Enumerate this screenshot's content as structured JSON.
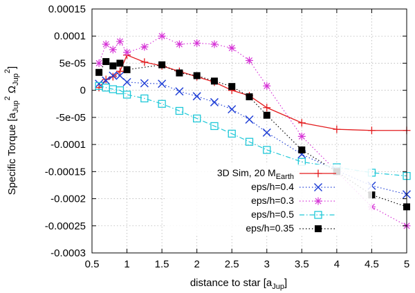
{
  "chart_data": {
    "type": "line",
    "xlabel": "distance to star [a",
    "xlabel_sub": "Jup",
    "xlabel_end": "]",
    "ylabel": "Specific Torque [a",
    "ylabel_sub1": "Jup",
    "ylabel_sup1": "2",
    "ylabel_mid": " Ω",
    "ylabel_sub2": "Jup",
    "ylabel_sup2": "2",
    "ylabel_end": "]",
    "xlim": [
      0.5,
      5
    ],
    "ylim": [
      -0.0003,
      0.00015
    ],
    "xticks": [
      {
        "value": 0.5,
        "label": "0.5"
      },
      {
        "value": 1,
        "label": "1"
      },
      {
        "value": 1.5,
        "label": "1.5"
      },
      {
        "value": 2,
        "label": "2"
      },
      {
        "value": 2.5,
        "label": "2.5"
      },
      {
        "value": 3,
        "label": "3"
      },
      {
        "value": 3.5,
        "label": "3.5"
      },
      {
        "value": 4,
        "label": "4"
      },
      {
        "value": 4.5,
        "label": "4.5"
      },
      {
        "value": 5,
        "label": "5"
      }
    ],
    "yticks": [
      {
        "value": 0.00015,
        "label": "0.00015"
      },
      {
        "value": 0.0001,
        "label": "0.0001"
      },
      {
        "value": 5e-05,
        "label": "5e-05"
      },
      {
        "value": 0,
        "label": "0"
      },
      {
        "value": -5e-05,
        "label": "-5e-05"
      },
      {
        "value": -0.0001,
        "label": "-0.0001"
      },
      {
        "value": -0.00015,
        "label": "-0.00015"
      },
      {
        "value": -0.0002,
        "label": "-0.0002"
      },
      {
        "value": -0.00025,
        "label": "-0.00025"
      },
      {
        "value": -0.0003,
        "label": "-0.0003"
      }
    ],
    "grid": true,
    "legend_position": "lower-right",
    "series": [
      {
        "name": "3D Sim, 20 M",
        "name_sub": "Earth",
        "color": "#e31a1c",
        "marker": "plus",
        "line": "solid",
        "x": [
          0.6,
          0.7,
          0.8,
          0.9,
          1.0,
          1.25,
          1.5,
          1.75,
          2.0,
          2.25,
          2.5,
          2.75,
          3.0,
          3.5,
          4.0,
          4.5,
          5.0
        ],
        "y": [
          5e-06,
          2e-05,
          2.5e-05,
          3.5e-05,
          6.5e-05,
          5.2e-05,
          4.5e-05,
          3.5e-05,
          2.5e-05,
          1.5e-05,
          0.0,
          -1e-05,
          -3.2e-05,
          -6e-05,
          -7.2e-05,
          -7.4e-05,
          -7.4e-05
        ]
      },
      {
        "name": "eps/h=0.4",
        "color": "#1f3fd6",
        "marker": "x",
        "line": "dotted",
        "x": [
          0.6,
          0.7,
          0.8,
          0.9,
          1.0,
          1.25,
          1.5,
          1.75,
          2.0,
          2.25,
          2.5,
          2.75,
          3.0,
          3.5,
          4.0,
          4.5,
          5.0
        ],
        "y": [
          1.2e-05,
          1.8e-05,
          2.7e-05,
          2.7e-05,
          1.5e-05,
          1.3e-05,
          1.2e-05,
          -2e-06,
          -1.1e-05,
          -2.2e-05,
          -3.5e-05,
          -5.4e-05,
          -7.8e-05,
          -0.000118,
          -0.000148,
          -0.000176,
          -0.000192
        ]
      },
      {
        "name": "eps/h=0.3",
        "color": "#d633d6",
        "marker": "star",
        "line": "dotted",
        "x": [
          0.6,
          0.7,
          0.8,
          0.9,
          1.0,
          1.25,
          1.5,
          1.75,
          2.0,
          2.25,
          2.5,
          2.75,
          3.0,
          3.5,
          4.0,
          4.5,
          5.0
        ],
        "y": [
          5e-05,
          8.5e-05,
          7.5e-05,
          9e-05,
          7e-05,
          8e-05,
          0.0001,
          8.5e-05,
          8.7e-05,
          8.5e-05,
          7.8e-05,
          5.5e-05,
          8e-06,
          -8.5e-05,
          -0.00015,
          -0.000215,
          -0.00025
        ]
      },
      {
        "name": "eps/h=0.5",
        "color": "#1ec8d8",
        "marker": "square-open",
        "line": "dashdot",
        "x": [
          0.6,
          0.7,
          0.8,
          0.9,
          1.0,
          1.25,
          1.5,
          1.75,
          2.0,
          2.25,
          2.5,
          2.75,
          3.0,
          3.5,
          4.0,
          4.5,
          5.0
        ],
        "y": [
          8e-06,
          5e-06,
          2e-06,
          0.0,
          -8e-06,
          -1.5e-05,
          -2.5e-05,
          -3.8e-05,
          -5.2e-05,
          -6.6e-05,
          -8e-05,
          -9.5e-05,
          -0.00011,
          -0.000132,
          -0.000142,
          -0.000152,
          -0.000158
        ]
      },
      {
        "name": "eps/h=0.35",
        "color": "#000000",
        "marker": "square-filled",
        "line": "dotted",
        "x": [
          0.6,
          0.7,
          0.8,
          0.9,
          1.0,
          1.5,
          1.75,
          2.0,
          2.25,
          2.5,
          2.75,
          3.0,
          3.5,
          4.0,
          4.5,
          5.0
        ],
        "y": [
          3.3e-05,
          5.3e-05,
          4.5e-05,
          5e-05,
          3.8e-05,
          4.7e-05,
          3.2e-05,
          2.7e-05,
          1.7e-05,
          7e-06,
          -1.2e-05,
          -4.6e-05,
          -0.00011,
          -0.00015,
          -0.000193,
          -0.000215
        ]
      }
    ]
  }
}
